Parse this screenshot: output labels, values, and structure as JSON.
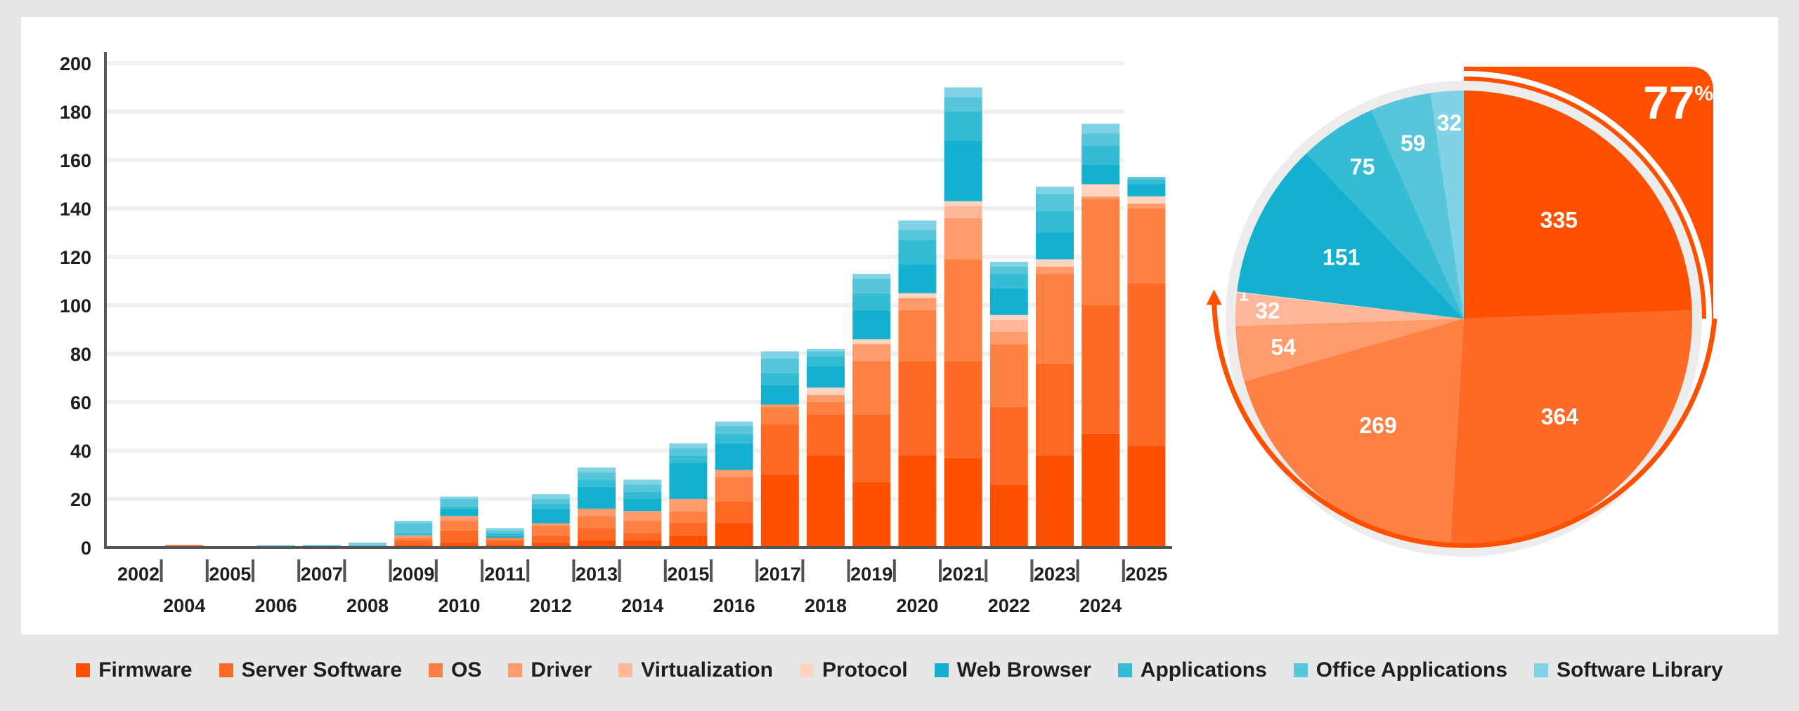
{
  "chart_data": [
    {
      "type": "bar",
      "stacked": true,
      "categories": [
        "2002",
        "2004",
        "2005",
        "2006",
        "2007",
        "2008",
        "2009",
        "2010",
        "2011",
        "2012",
        "2013",
        "2014",
        "2015",
        "2016",
        "2017",
        "2018",
        "2019",
        "2020",
        "2021",
        "2022",
        "2023",
        "2024",
        "2025"
      ],
      "ylim": [
        0,
        200
      ],
      "yticks": [
        0,
        20,
        40,
        60,
        80,
        100,
        120,
        140,
        160,
        180,
        200
      ],
      "grid": true,
      "series": [
        {
          "name": "Firmware",
          "values": [
            0,
            0,
            0,
            0,
            0,
            0,
            1,
            2,
            1,
            2,
            3,
            3,
            5,
            10,
            30,
            38,
            27,
            38,
            37,
            26,
            38,
            47,
            42
          ]
        },
        {
          "name": "Server Software",
          "values": [
            0,
            1,
            0,
            0,
            0,
            0,
            2,
            5,
            2,
            3,
            5,
            3,
            5,
            9,
            21,
            17,
            28,
            39,
            40,
            32,
            38,
            53,
            67
          ]
        },
        {
          "name": "OS",
          "values": [
            0,
            0,
            0,
            0,
            0,
            0,
            1,
            4,
            1,
            4,
            5,
            5,
            5,
            10,
            7,
            5,
            22,
            21,
            42,
            26,
            37,
            44,
            31
          ]
        },
        {
          "name": "Driver",
          "values": [
            0,
            0,
            0,
            0,
            0,
            0,
            1,
            2,
            0,
            1,
            3,
            4,
            5,
            3,
            1,
            3,
            7,
            5,
            17,
            5,
            3,
            1,
            2
          ]
        },
        {
          "name": "Virtualization",
          "values": [
            0,
            0,
            0,
            0,
            0,
            0,
            0,
            0,
            0,
            0,
            0,
            0,
            0,
            0,
            0,
            0,
            0,
            0,
            5,
            5,
            0,
            0,
            0
          ]
        },
        {
          "name": "Protocol",
          "values": [
            0,
            0,
            0,
            0,
            0,
            0,
            0,
            0,
            0,
            0,
            0,
            0,
            0,
            0,
            0,
            3,
            2,
            2,
            2,
            2,
            3,
            5,
            3
          ]
        },
        {
          "name": "Web Browser",
          "values": [
            0,
            0,
            0,
            0,
            0,
            0,
            0,
            3,
            1,
            6,
            9,
            5,
            15,
            11,
            8,
            9,
            12,
            12,
            25,
            11,
            11,
            8,
            5
          ]
        },
        {
          "name": "Applications",
          "values": [
            0,
            0,
            0,
            0,
            0,
            0,
            1,
            1,
            1,
            2,
            3,
            3,
            3,
            4,
            5,
            4,
            7,
            10,
            12,
            6,
            9,
            8,
            2
          ]
        },
        {
          "name": "Office Applications",
          "values": [
            0,
            0,
            0,
            0,
            1,
            1,
            4,
            3,
            1,
            2,
            3,
            3,
            3,
            3,
            6,
            2,
            6,
            4,
            6,
            3,
            7,
            5,
            1
          ]
        },
        {
          "name": "Software Library",
          "values": [
            0,
            0,
            0,
            1,
            0,
            1,
            1,
            1,
            1,
            2,
            2,
            2,
            2,
            2,
            3,
            1,
            2,
            4,
            4,
            2,
            3,
            4,
            0
          ]
        }
      ]
    },
    {
      "type": "pie",
      "labels": [
        "Firmware",
        "Server Software",
        "OS",
        "Driver",
        "Virtualization",
        "Protocol",
        "Web Browser",
        "Applications",
        "Office Applications",
        "Software Library"
      ],
      "values": [
        335,
        364,
        269,
        54,
        32,
        1,
        151,
        75,
        59,
        32
      ],
      "highlight": "77%"
    }
  ],
  "pie": {
    "percent": "77",
    "percent_sign": "%"
  },
  "colors": [
    "#fe5000",
    "#fe6a26",
    "#fe8143",
    "#fd9c6a",
    "#feb799",
    "#fed3bf",
    "#13b0cf",
    "#34bcd5",
    "#57c6db",
    "#7fd3e4"
  ],
  "legend": [
    {
      "label": "Firmware",
      "color": "#fe5000"
    },
    {
      "label": "Server Software",
      "color": "#fe6a26"
    },
    {
      "label": "OS",
      "color": "#fe8143"
    },
    {
      "label": "Driver",
      "color": "#fd9c6a"
    },
    {
      "label": "Virtualization",
      "color": "#feb799"
    },
    {
      "label": "Protocol",
      "color": "#fed3bf"
    },
    {
      "label": "Web Browser",
      "color": "#13b0cf"
    },
    {
      "label": "Applications",
      "color": "#34bcd5"
    },
    {
      "label": "Office Applications",
      "color": "#57c6db"
    },
    {
      "label": "Software Library",
      "color": "#7fd3e4"
    }
  ]
}
